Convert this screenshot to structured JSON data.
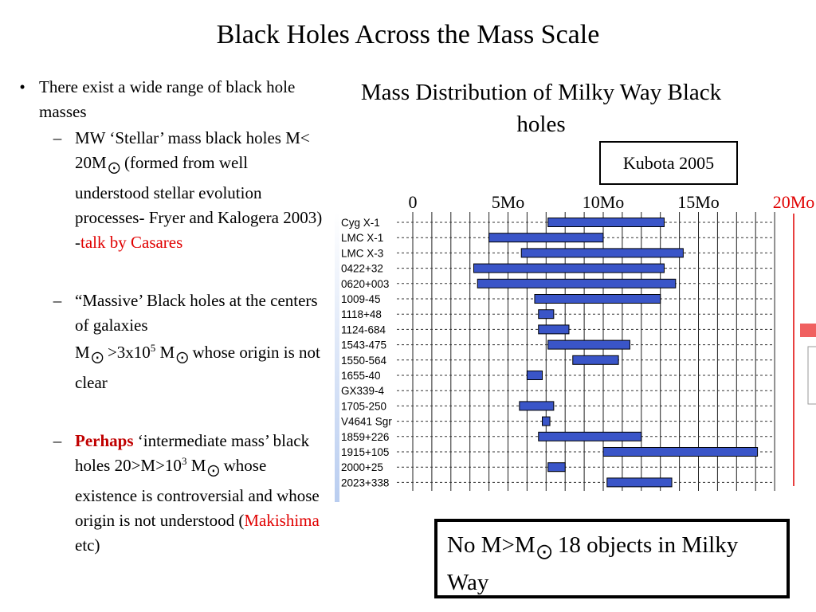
{
  "slide": {
    "title": "Black Holes Across the Mass Scale"
  },
  "bullets": {
    "b1": "There exist a wide range of black hole masses",
    "s1_a": "MW ‘Stellar’ mass black holes M< 20M",
    "s1_b": " (formed from well understood stellar evolution processes- Fryer and Kalogera 2003) -",
    "s1_link": "talk by Casares",
    "s2_line1": "“Massive’ Black holes at the centers of galaxies",
    "s2_line2_a": "M",
    "s2_line2_b": " >3x10",
    "s2_line2_sup": "5",
    "s2_line2_c": " M",
    "s2_line2_d": " whose origin is not clear",
    "s3_bold": "Perhaps",
    "s3_a": " ‘intermediate mass’ black holes 20>M>10",
    "s3_sup": "3",
    "s3_b": " M",
    "s3_c": " whose existence is controversial and whose origin is not understood (",
    "s3_link": "Makishima",
    "s3_d": " etc)",
    "bullet_mark": "•",
    "dash_mark": "–",
    "sun_symbol": "⨀"
  },
  "figure": {
    "title": "Mass Distribution of Milky Way Black holes",
    "reference": "Kubota 2005",
    "note_a": "No M>M",
    "note_b": " 18 objects in Milky Way"
  },
  "chart_data": {
    "type": "bar",
    "orientation": "horizontal-range",
    "x_ticks": [
      {
        "label": "0",
        "value": 0
      },
      {
        "label": "5Mo",
        "value": 5
      },
      {
        "label": "10Mo",
        "value": 10
      },
      {
        "label": "15Mo",
        "value": 15
      },
      {
        "label": "20Mo",
        "value": 20
      }
    ],
    "xlim": [
      0,
      20
    ],
    "grid": true,
    "colors": {
      "bar": "#3a55c8",
      "bar_stroke": "#000000",
      "limit_line": "#e00000"
    },
    "ranges": [
      {
        "name": "Cyg X-1",
        "min": 7.1,
        "max": 13.2
      },
      {
        "name": "LMC X-1",
        "min": 4.0,
        "max": 10.0
      },
      {
        "name": "LMC X-3",
        "min": 5.7,
        "max": 14.2
      },
      {
        "name": "0422+32",
        "min": 3.2,
        "max": 13.2
      },
      {
        "name": "0620+003",
        "min": 3.4,
        "max": 13.8
      },
      {
        "name": "1009-45",
        "min": 6.4,
        "max": 13.0
      },
      {
        "name": "1118+48",
        "min": 6.6,
        "max": 7.4
      },
      {
        "name": "1124-684",
        "min": 6.6,
        "max": 8.2
      },
      {
        "name": "1543-475",
        "min": 7.1,
        "max": 11.4
      },
      {
        "name": "1550-564",
        "min": 8.4,
        "max": 10.8
      },
      {
        "name": "1655-40",
        "min": 6.0,
        "max": 6.8
      },
      {
        "name": "GX339-4",
        "min": null,
        "max": null
      },
      {
        "name": "1705-250",
        "min": 5.6,
        "max": 7.4
      },
      {
        "name": "V4641 Sgr",
        "min": 6.8,
        "max": 7.2
      },
      {
        "name": "1859+226",
        "min": 6.6,
        "max": 12.0
      },
      {
        "name": "1915+105",
        "min": 10.0,
        "max": 18.1
      },
      {
        "name": "2000+25",
        "min": 7.1,
        "max": 8.0
      },
      {
        "name": "2023+338",
        "min": 10.2,
        "max": 13.6
      }
    ]
  }
}
